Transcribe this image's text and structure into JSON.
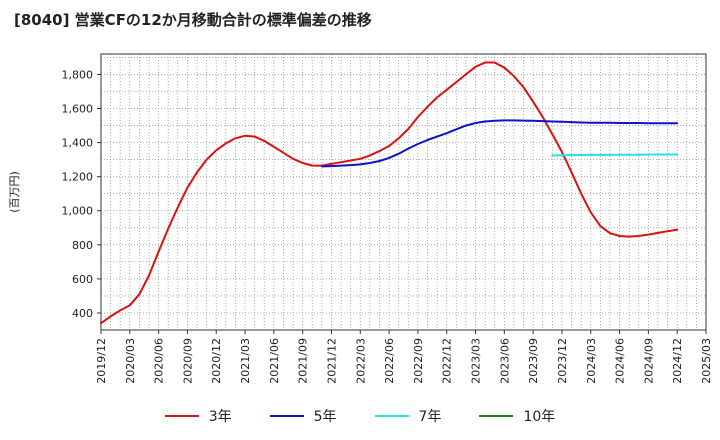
{
  "chart_data": {
    "type": "line",
    "title": "[8040]  営業CFの12か月移動合計の標準偏差の推移",
    "ylabel": "(百万円)",
    "xlabel": "",
    "ylim": [
      300,
      1920
    ],
    "xlim": [
      "2019-12",
      "2025-03"
    ],
    "y_ticks": [
      400,
      600,
      800,
      1000,
      1200,
      1400,
      1600,
      1800
    ],
    "x_ticks": [
      "2019/12",
      "2020/03",
      "2020/06",
      "2020/09",
      "2020/12",
      "2021/03",
      "2021/06",
      "2021/09",
      "2021/12",
      "2022/03",
      "2022/06",
      "2022/09",
      "2022/12",
      "2023/03",
      "2023/06",
      "2023/09",
      "2023/12",
      "2024/03",
      "2024/06",
      "2024/09",
      "2024/12",
      "2025/03"
    ],
    "grid": true,
    "legend_position": "bottom",
    "series": [
      {
        "name": "3年",
        "color": "#dd1111",
        "points": [
          [
            "2019-12",
            340
          ],
          [
            "2020-01",
            380
          ],
          [
            "2020-02",
            415
          ],
          [
            "2020-03",
            445
          ],
          [
            "2020-04",
            510
          ],
          [
            "2020-05",
            620
          ],
          [
            "2020-06",
            760
          ],
          [
            "2020-07",
            895
          ],
          [
            "2020-08",
            1020
          ],
          [
            "2020-09",
            1135
          ],
          [
            "2020-10",
            1225
          ],
          [
            "2020-11",
            1300
          ],
          [
            "2020-12",
            1355
          ],
          [
            "2021-01",
            1395
          ],
          [
            "2021-02",
            1425
          ],
          [
            "2021-03",
            1440
          ],
          [
            "2021-04",
            1435
          ],
          [
            "2021-05",
            1410
          ],
          [
            "2021-06",
            1375
          ],
          [
            "2021-07",
            1340
          ],
          [
            "2021-08",
            1305
          ],
          [
            "2021-09",
            1280
          ],
          [
            "2021-10",
            1265
          ],
          [
            "2021-11",
            1265
          ],
          [
            "2021-12",
            1275
          ],
          [
            "2022-01",
            1285
          ],
          [
            "2022-02",
            1295
          ],
          [
            "2022-03",
            1305
          ],
          [
            "2022-04",
            1325
          ],
          [
            "2022-05",
            1350
          ],
          [
            "2022-06",
            1380
          ],
          [
            "2022-07",
            1425
          ],
          [
            "2022-08",
            1480
          ],
          [
            "2022-09",
            1550
          ],
          [
            "2022-10",
            1610
          ],
          [
            "2022-11",
            1665
          ],
          [
            "2022-12",
            1710
          ],
          [
            "2023-01",
            1755
          ],
          [
            "2023-02",
            1800
          ],
          [
            "2023-03",
            1845
          ],
          [
            "2023-04",
            1870
          ],
          [
            "2023-05",
            1870
          ],
          [
            "2023-06",
            1840
          ],
          [
            "2023-07",
            1790
          ],
          [
            "2023-08",
            1725
          ],
          [
            "2023-09",
            1640
          ],
          [
            "2023-10",
            1550
          ],
          [
            "2023-11",
            1450
          ],
          [
            "2023-12",
            1345
          ],
          [
            "2024-01",
            1225
          ],
          [
            "2024-02",
            1100
          ],
          [
            "2024-03",
            990
          ],
          [
            "2024-04",
            910
          ],
          [
            "2024-05",
            868
          ],
          [
            "2024-06",
            852
          ],
          [
            "2024-07",
            848
          ],
          [
            "2024-08",
            852
          ],
          [
            "2024-09",
            860
          ],
          [
            "2024-10",
            870
          ],
          [
            "2024-11",
            880
          ],
          [
            "2024-12",
            888
          ]
        ]
      },
      {
        "name": "5年",
        "color": "#1111cc",
        "points": [
          [
            "2021-11",
            1260
          ],
          [
            "2021-12",
            1262
          ],
          [
            "2022-01",
            1265
          ],
          [
            "2022-02",
            1268
          ],
          [
            "2022-03",
            1272
          ],
          [
            "2022-04",
            1280
          ],
          [
            "2022-05",
            1292
          ],
          [
            "2022-06",
            1310
          ],
          [
            "2022-07",
            1335
          ],
          [
            "2022-08",
            1365
          ],
          [
            "2022-09",
            1392
          ],
          [
            "2022-10",
            1415
          ],
          [
            "2022-11",
            1435
          ],
          [
            "2022-12",
            1455
          ],
          [
            "2023-01",
            1478
          ],
          [
            "2023-02",
            1500
          ],
          [
            "2023-03",
            1515
          ],
          [
            "2023-04",
            1524
          ],
          [
            "2023-05",
            1528
          ],
          [
            "2023-06",
            1530
          ],
          [
            "2023-07",
            1530
          ],
          [
            "2023-08",
            1529
          ],
          [
            "2023-09",
            1528
          ],
          [
            "2023-10",
            1526
          ],
          [
            "2023-11",
            1524
          ],
          [
            "2023-12",
            1522
          ],
          [
            "2024-01",
            1520
          ],
          [
            "2024-02",
            1518
          ],
          [
            "2024-03",
            1517
          ],
          [
            "2024-04",
            1516
          ],
          [
            "2024-05",
            1516
          ],
          [
            "2024-06",
            1515
          ],
          [
            "2024-07",
            1515
          ],
          [
            "2024-08",
            1515
          ],
          [
            "2024-09",
            1514
          ],
          [
            "2024-10",
            1514
          ],
          [
            "2024-11",
            1514
          ],
          [
            "2024-12",
            1514
          ]
        ]
      },
      {
        "name": "7年",
        "color": "#22e4e4",
        "points": [
          [
            "2023-11",
            1325
          ],
          [
            "2023-12",
            1326
          ],
          [
            "2024-01",
            1327
          ],
          [
            "2024-02",
            1327
          ],
          [
            "2024-03",
            1328
          ],
          [
            "2024-04",
            1328
          ],
          [
            "2024-05",
            1328
          ],
          [
            "2024-06",
            1329
          ],
          [
            "2024-07",
            1329
          ],
          [
            "2024-08",
            1329
          ],
          [
            "2024-09",
            1330
          ],
          [
            "2024-10",
            1330
          ],
          [
            "2024-11",
            1330
          ],
          [
            "2024-12",
            1330
          ]
        ]
      },
      {
        "name": "10年",
        "color": "#228822",
        "points": []
      }
    ]
  }
}
